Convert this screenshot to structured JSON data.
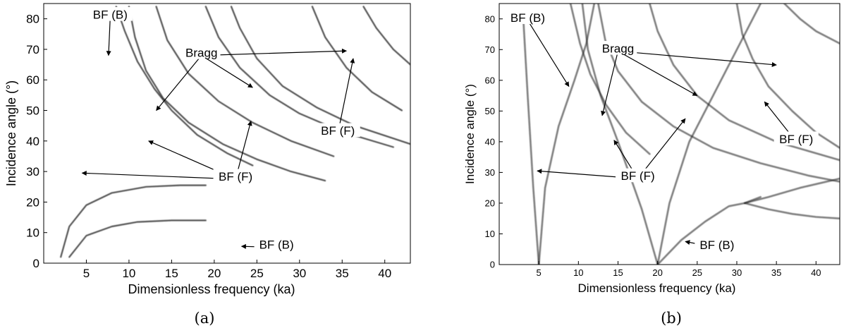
{
  "chart_data": [
    {
      "type": "heatmap",
      "panel_label": "(a)",
      "xlabel": "Dimensionless frequency (ka)",
      "ylabel": "Incidence angle (°)",
      "xlim": [
        0,
        43
      ],
      "ylim": [
        0,
        85
      ],
      "xticks": [
        5,
        10,
        15,
        20,
        25,
        30,
        35,
        40
      ],
      "yticks": [
        0,
        10,
        20,
        30,
        40,
        50,
        60,
        70,
        80
      ],
      "colormap": "grayscale, dark = high",
      "grid": false,
      "ridges": [
        {
          "x": [
            2,
            3,
            5,
            8,
            12,
            16,
            19
          ],
          "y": [
            2,
            12,
            19,
            23,
            25,
            25.5,
            25.5
          ]
        },
        {
          "x": [
            3,
            5,
            8,
            11,
            15,
            19
          ],
          "y": [
            2,
            9,
            12,
            13.5,
            14,
            14
          ]
        },
        {
          "x": [
            8.5,
            9.5,
            11,
            13,
            15,
            18,
            21.5,
            24.5
          ],
          "y": [
            84,
            76,
            66,
            57,
            50,
            42,
            36,
            32
          ]
        },
        {
          "x": [
            10,
            10.7,
            12,
            14,
            17,
            21,
            25,
            29,
            33
          ],
          "y": [
            84,
            74,
            63,
            54,
            46,
            39,
            34,
            30,
            27
          ]
        },
        {
          "x": [
            13.2,
            14.5,
            17,
            20.5,
            24.5,
            29,
            34
          ],
          "y": [
            84,
            73,
            62,
            53,
            46,
            40,
            35
          ]
        },
        {
          "x": [
            19,
            20.5,
            23,
            26.5,
            30,
            35,
            41
          ],
          "y": [
            84,
            74,
            64,
            55,
            49,
            43,
            38
          ]
        },
        {
          "x": [
            22,
            23,
            25,
            28,
            32,
            36.5,
            43
          ],
          "y": [
            84,
            77,
            67,
            58,
            51,
            45,
            39
          ]
        },
        {
          "x": [
            31.5,
            33,
            35.5,
            38.5,
            42
          ],
          "y": [
            84,
            74,
            64,
            56,
            50
          ]
        },
        {
          "x": [
            37.5,
            39,
            41,
            43
          ],
          "y": [
            84,
            77,
            70,
            65
          ]
        }
      ],
      "annotations": [
        {
          "text": "BF (B)",
          "text_at": [
            7.8,
            80.5
          ],
          "arrow_to": [
            7.6,
            68
          ]
        },
        {
          "text": "Bragg",
          "text_at": [
            18.5,
            68
          ],
          "arrows_to": [
            [
              13.2,
              50
            ],
            [
              24.5,
              57.5
            ],
            [
              35.5,
              69.5
            ]
          ]
        },
        {
          "text": "BF (F)",
          "text_at": [
            34.5,
            42.5
          ],
          "arrow_to": [
            36.3,
            67
          ]
        },
        {
          "text": "BF (F)",
          "text_at": [
            22.5,
            27.5
          ],
          "arrows_to": [
            [
              4.5,
              29.5
            ],
            [
              12.3,
              40
            ],
            [
              24.3,
              46.5
            ]
          ]
        },
        {
          "text": "BF (B)",
          "text_at": [
            27.3,
            5.2
          ],
          "arrow_to": [
            23.2,
            5.5
          ]
        }
      ]
    },
    {
      "type": "heatmap",
      "panel_label": "(b)",
      "xlabel": "Dimensionless frequency (ka)",
      "ylabel": "Incidence angle (°)",
      "xlim": [
        0,
        43
      ],
      "ylim": [
        0,
        85
      ],
      "xticks": [
        5,
        10,
        15,
        20,
        25,
        30,
        35,
        40
      ],
      "yticks": [
        0,
        10,
        20,
        30,
        40,
        50,
        60,
        70,
        80
      ],
      "colormap": "grayscale, dark = high",
      "grid": false,
      "ridges": [
        {
          "x": [
            3,
            3.6,
            4.3,
            5
          ],
          "y": [
            82,
            55,
            25,
            0
          ]
        },
        {
          "x": [
            5,
            5.8,
            7.5,
            9.5,
            11,
            12
          ],
          "y": [
            0,
            25,
            45,
            60,
            72,
            85
          ]
        },
        {
          "x": [
            9,
            10.2,
            11.5,
            13.5,
            16,
            19
          ],
          "y": [
            85,
            72,
            62,
            52,
            43,
            36
          ]
        },
        {
          "x": [
            10.5,
            11.2,
            12.8,
            15,
            18,
            20
          ],
          "y": [
            85,
            70,
            55,
            40,
            18,
            0
          ]
        },
        {
          "x": [
            12.5,
            13.4,
            15,
            18,
            22,
            27,
            33,
            39,
            43
          ],
          "y": [
            85,
            73,
            63,
            53,
            45,
            38,
            33,
            29,
            27
          ]
        },
        {
          "x": [
            19,
            20,
            22,
            25,
            29,
            35,
            43
          ],
          "y": [
            85,
            76,
            65,
            55,
            47,
            40,
            34
          ]
        },
        {
          "x": [
            20,
            23,
            26,
            29,
            31,
            33
          ],
          "y": [
            0,
            8,
            14,
            19,
            20,
            22
          ]
        },
        {
          "x": [
            20,
            21.5,
            24,
            27,
            30,
            33
          ],
          "y": [
            0,
            20,
            40,
            55,
            70,
            85
          ]
        },
        {
          "x": [
            30,
            30.7,
            32,
            34,
            37,
            40,
            43
          ],
          "y": [
            85,
            75,
            67,
            58,
            50,
            43,
            38
          ]
        },
        {
          "x": [
            31,
            34,
            37,
            40,
            43
          ],
          "y": [
            20,
            18,
            16.5,
            15.5,
            15
          ]
        },
        {
          "x": [
            31,
            34,
            38,
            43
          ],
          "y": [
            20,
            22,
            25,
            28
          ]
        },
        {
          "x": [
            36,
            38,
            40,
            43
          ],
          "y": [
            85,
            80,
            76,
            72
          ]
        }
      ],
      "annotations": [
        {
          "text": "BF (B)",
          "text_at": [
            3.6,
            79.5
          ],
          "arrow_to": [
            8.8,
            58
          ]
        },
        {
          "text": "Bragg",
          "text_at": [
            15,
            69.5
          ],
          "arrows_to": [
            [
              13,
              48.5
            ],
            [
              25,
              55
            ],
            [
              35,
              65
            ]
          ]
        },
        {
          "text": "BF (F)",
          "text_at": [
            37.5,
            40
          ],
          "arrow_to": [
            33.5,
            53
          ]
        },
        {
          "text": "BF (F)",
          "text_at": [
            17.5,
            28
          ],
          "arrows_to": [
            [
              4.8,
              30.5
            ],
            [
              14.5,
              40.5
            ],
            [
              23.5,
              47.5
            ]
          ]
        },
        {
          "text": "BF (B)",
          "text_at": [
            27.5,
            5.5
          ],
          "arrow_to": [
            23.5,
            7.5
          ]
        }
      ]
    }
  ]
}
